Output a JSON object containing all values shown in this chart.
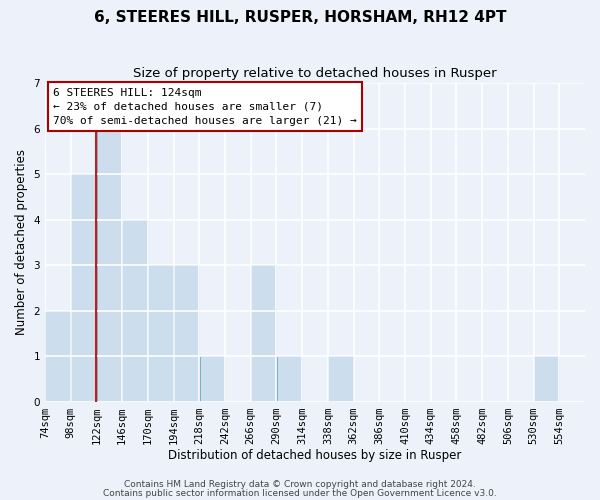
{
  "title": "6, STEERES HILL, RUSPER, HORSHAM, RH12 4PT",
  "subtitle": "Size of property relative to detached houses in Rusper",
  "xlabel": "Distribution of detached houses by size in Rusper",
  "ylabel": "Number of detached properties",
  "bar_color": "#ccdded",
  "bar_edge_color": "#7aafc8",
  "red_line_x": 122,
  "bin_edges": [
    74,
    98,
    122,
    146,
    170,
    194,
    218,
    242,
    266,
    290,
    314,
    338,
    362,
    386,
    410,
    434,
    458,
    482,
    506,
    530,
    554
  ],
  "bar_heights": [
    2,
    5,
    6,
    4,
    3,
    3,
    1,
    0,
    3,
    1,
    0,
    1,
    0,
    0,
    0,
    0,
    0,
    0,
    0,
    1
  ],
  "xlim_min": 74,
  "xlim_max": 578,
  "ylim_min": 0,
  "ylim_max": 7,
  "yticks": [
    0,
    1,
    2,
    3,
    4,
    5,
    6,
    7
  ],
  "xtick_labels": [
    "74sqm",
    "98sqm",
    "122sqm",
    "146sqm",
    "170sqm",
    "194sqm",
    "218sqm",
    "242sqm",
    "266sqm",
    "290sqm",
    "314sqm",
    "338sqm",
    "362sqm",
    "386sqm",
    "410sqm",
    "434sqm",
    "458sqm",
    "482sqm",
    "506sqm",
    "530sqm",
    "554sqm"
  ],
  "xtick_positions": [
    74,
    98,
    122,
    146,
    170,
    194,
    218,
    242,
    266,
    290,
    314,
    338,
    362,
    386,
    410,
    434,
    458,
    482,
    506,
    530,
    554
  ],
  "annotation_text": "6 STEERES HILL: 124sqm\n← 23% of detached houses are smaller (7)\n70% of semi-detached houses are larger (21) →",
  "annotation_box_facecolor": "#ffffff",
  "annotation_box_edgecolor": "#aa0000",
  "footer_line1": "Contains HM Land Registry data © Crown copyright and database right 2024.",
  "footer_line2": "Contains public sector information licensed under the Open Government Licence v3.0.",
  "background_color": "#edf1fa",
  "grid_color": "#ffffff",
  "title_fontsize": 11,
  "subtitle_fontsize": 9.5,
  "axis_label_fontsize": 8.5,
  "tick_fontsize": 7.5,
  "annotation_fontsize": 8,
  "footer_fontsize": 6.5
}
